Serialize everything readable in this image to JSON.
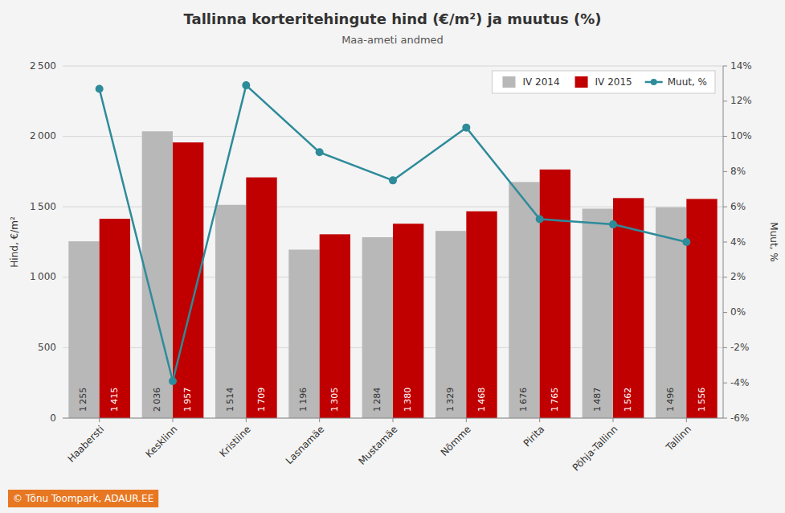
{
  "chart_data": {
    "type": "bar",
    "title": "Tallinna korteritehingute hind (€/m²) ja muutus (%)",
    "subtitle": "Maa-ameti andmed",
    "y_label": "Hind, €/m²",
    "y2_label": "Muut, %",
    "annotations": [
      "© Tõnu Toompark, ADAUR.EE"
    ],
    "categories": [
      "Haabersti",
      "Kesklinn",
      "Kristiine",
      "Lasnamäe",
      "Mustamäe",
      "Nõmme",
      "Pirita",
      "Põhja-Tallinn",
      "Tallinn"
    ],
    "series": [
      {
        "name": "IV 2014",
        "type": "bar",
        "color": "#b8b8b8",
        "values": [
          1255,
          2036,
          1514,
          1196,
          1284,
          1329,
          1676,
          1487,
          1496
        ],
        "value_labels": [
          "1 255",
          "2 036",
          "1 514",
          "1 196",
          "1 284",
          "1 329",
          "1 676",
          "1 487",
          "1 496"
        ]
      },
      {
        "name": "IV 2015",
        "type": "bar",
        "color": "#c00000",
        "values": [
          1415,
          1957,
          1709,
          1305,
          1380,
          1468,
          1765,
          1562,
          1556
        ],
        "value_labels": [
          "1 415",
          "1 957",
          "1 709",
          "1 305",
          "1 380",
          "1 468",
          "1 765",
          "1 562",
          "1 556"
        ]
      },
      {
        "name": "Muut, %",
        "type": "line",
        "axis": "y2",
        "color": "#2e8b9a",
        "marker": "circle",
        "values": [
          12.7,
          -3.9,
          12.9,
          9.1,
          7.5,
          10.5,
          5.3,
          5.0,
          4.0
        ]
      }
    ],
    "ylim": [
      0,
      2500
    ],
    "yticks": [
      0,
      500,
      {
        "value": 1000,
        "label": "1 000"
      },
      {
        "value": 1500,
        "label": "1 500"
      },
      {
        "value": 2000,
        "label": "2 000"
      },
      {
        "value": 2500,
        "label": "2 500"
      }
    ],
    "y2lim": [
      -6,
      14
    ],
    "y2ticks": [
      {
        "value": -6,
        "label": "-6%"
      },
      {
        "value": -4,
        "label": "-4%"
      },
      {
        "value": -2,
        "label": "-2%"
      },
      {
        "value": 0,
        "label": "0%"
      },
      {
        "value": 2,
        "label": "2%"
      },
      {
        "value": 4,
        "label": "4%"
      },
      {
        "value": 6,
        "label": "6%"
      },
      {
        "value": 8,
        "label": "8%"
      },
      {
        "value": 10,
        "label": "10%"
      },
      {
        "value": 12,
        "label": "12%"
      },
      {
        "value": 14,
        "label": "14%"
      }
    ],
    "grid": true,
    "legend": "upper right",
    "data_labels": true
  }
}
